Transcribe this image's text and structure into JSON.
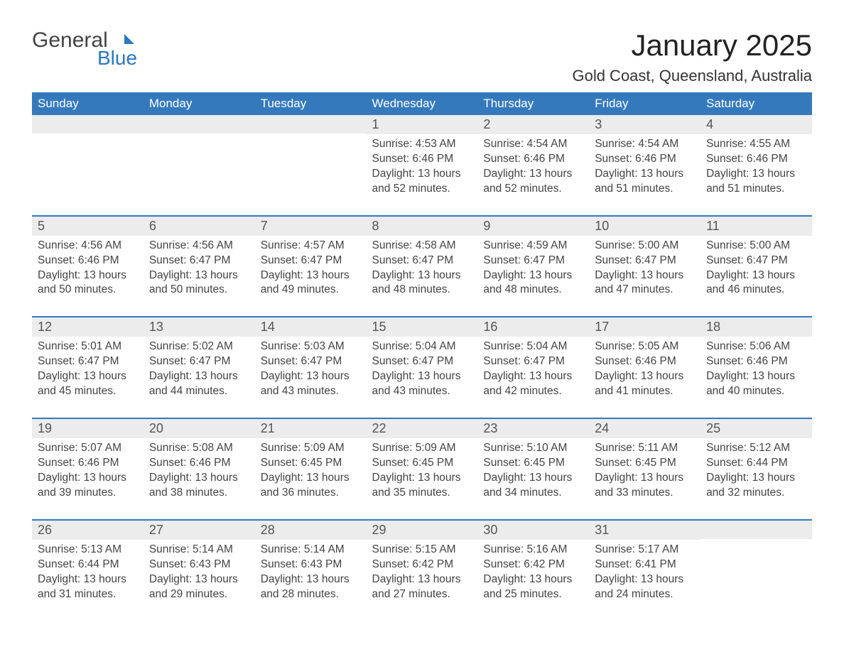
{
  "logo": {
    "text1": "General",
    "text2": "Blue",
    "flag_color": "#2778c4"
  },
  "title": "January 2025",
  "location": "Gold Coast, Queensland, Australia",
  "colors": {
    "header_bg": "#3579bd",
    "header_text": "#ffffff",
    "daynum_bg": "#ececec",
    "border": "#3579bd",
    "text": "#444444"
  },
  "day_headers": [
    "Sunday",
    "Monday",
    "Tuesday",
    "Wednesday",
    "Thursday",
    "Friday",
    "Saturday"
  ],
  "weeks": [
    [
      {
        "day": "",
        "sunrise": "",
        "sunset": "",
        "daylight": ""
      },
      {
        "day": "",
        "sunrise": "",
        "sunset": "",
        "daylight": ""
      },
      {
        "day": "",
        "sunrise": "",
        "sunset": "",
        "daylight": ""
      },
      {
        "day": "1",
        "sunrise": "Sunrise: 4:53 AM",
        "sunset": "Sunset: 6:46 PM",
        "daylight": "Daylight: 13 hours and 52 minutes."
      },
      {
        "day": "2",
        "sunrise": "Sunrise: 4:54 AM",
        "sunset": "Sunset: 6:46 PM",
        "daylight": "Daylight: 13 hours and 52 minutes."
      },
      {
        "day": "3",
        "sunrise": "Sunrise: 4:54 AM",
        "sunset": "Sunset: 6:46 PM",
        "daylight": "Daylight: 13 hours and 51 minutes."
      },
      {
        "day": "4",
        "sunrise": "Sunrise: 4:55 AM",
        "sunset": "Sunset: 6:46 PM",
        "daylight": "Daylight: 13 hours and 51 minutes."
      }
    ],
    [
      {
        "day": "5",
        "sunrise": "Sunrise: 4:56 AM",
        "sunset": "Sunset: 6:46 PM",
        "daylight": "Daylight: 13 hours and 50 minutes."
      },
      {
        "day": "6",
        "sunrise": "Sunrise: 4:56 AM",
        "sunset": "Sunset: 6:47 PM",
        "daylight": "Daylight: 13 hours and 50 minutes."
      },
      {
        "day": "7",
        "sunrise": "Sunrise: 4:57 AM",
        "sunset": "Sunset: 6:47 PM",
        "daylight": "Daylight: 13 hours and 49 minutes."
      },
      {
        "day": "8",
        "sunrise": "Sunrise: 4:58 AM",
        "sunset": "Sunset: 6:47 PM",
        "daylight": "Daylight: 13 hours and 48 minutes."
      },
      {
        "day": "9",
        "sunrise": "Sunrise: 4:59 AM",
        "sunset": "Sunset: 6:47 PM",
        "daylight": "Daylight: 13 hours and 48 minutes."
      },
      {
        "day": "10",
        "sunrise": "Sunrise: 5:00 AM",
        "sunset": "Sunset: 6:47 PM",
        "daylight": "Daylight: 13 hours and 47 minutes."
      },
      {
        "day": "11",
        "sunrise": "Sunrise: 5:00 AM",
        "sunset": "Sunset: 6:47 PM",
        "daylight": "Daylight: 13 hours and 46 minutes."
      }
    ],
    [
      {
        "day": "12",
        "sunrise": "Sunrise: 5:01 AM",
        "sunset": "Sunset: 6:47 PM",
        "daylight": "Daylight: 13 hours and 45 minutes."
      },
      {
        "day": "13",
        "sunrise": "Sunrise: 5:02 AM",
        "sunset": "Sunset: 6:47 PM",
        "daylight": "Daylight: 13 hours and 44 minutes."
      },
      {
        "day": "14",
        "sunrise": "Sunrise: 5:03 AM",
        "sunset": "Sunset: 6:47 PM",
        "daylight": "Daylight: 13 hours and 43 minutes."
      },
      {
        "day": "15",
        "sunrise": "Sunrise: 5:04 AM",
        "sunset": "Sunset: 6:47 PM",
        "daylight": "Daylight: 13 hours and 43 minutes."
      },
      {
        "day": "16",
        "sunrise": "Sunrise: 5:04 AM",
        "sunset": "Sunset: 6:47 PM",
        "daylight": "Daylight: 13 hours and 42 minutes."
      },
      {
        "day": "17",
        "sunrise": "Sunrise: 5:05 AM",
        "sunset": "Sunset: 6:46 PM",
        "daylight": "Daylight: 13 hours and 41 minutes."
      },
      {
        "day": "18",
        "sunrise": "Sunrise: 5:06 AM",
        "sunset": "Sunset: 6:46 PM",
        "daylight": "Daylight: 13 hours and 40 minutes."
      }
    ],
    [
      {
        "day": "19",
        "sunrise": "Sunrise: 5:07 AM",
        "sunset": "Sunset: 6:46 PM",
        "daylight": "Daylight: 13 hours and 39 minutes."
      },
      {
        "day": "20",
        "sunrise": "Sunrise: 5:08 AM",
        "sunset": "Sunset: 6:46 PM",
        "daylight": "Daylight: 13 hours and 38 minutes."
      },
      {
        "day": "21",
        "sunrise": "Sunrise: 5:09 AM",
        "sunset": "Sunset: 6:45 PM",
        "daylight": "Daylight: 13 hours and 36 minutes."
      },
      {
        "day": "22",
        "sunrise": "Sunrise: 5:09 AM",
        "sunset": "Sunset: 6:45 PM",
        "daylight": "Daylight: 13 hours and 35 minutes."
      },
      {
        "day": "23",
        "sunrise": "Sunrise: 5:10 AM",
        "sunset": "Sunset: 6:45 PM",
        "daylight": "Daylight: 13 hours and 34 minutes."
      },
      {
        "day": "24",
        "sunrise": "Sunrise: 5:11 AM",
        "sunset": "Sunset: 6:45 PM",
        "daylight": "Daylight: 13 hours and 33 minutes."
      },
      {
        "day": "25",
        "sunrise": "Sunrise: 5:12 AM",
        "sunset": "Sunset: 6:44 PM",
        "daylight": "Daylight: 13 hours and 32 minutes."
      }
    ],
    [
      {
        "day": "26",
        "sunrise": "Sunrise: 5:13 AM",
        "sunset": "Sunset: 6:44 PM",
        "daylight": "Daylight: 13 hours and 31 minutes."
      },
      {
        "day": "27",
        "sunrise": "Sunrise: 5:14 AM",
        "sunset": "Sunset: 6:43 PM",
        "daylight": "Daylight: 13 hours and 29 minutes."
      },
      {
        "day": "28",
        "sunrise": "Sunrise: 5:14 AM",
        "sunset": "Sunset: 6:43 PM",
        "daylight": "Daylight: 13 hours and 28 minutes."
      },
      {
        "day": "29",
        "sunrise": "Sunrise: 5:15 AM",
        "sunset": "Sunset: 6:42 PM",
        "daylight": "Daylight: 13 hours and 27 minutes."
      },
      {
        "day": "30",
        "sunrise": "Sunrise: 5:16 AM",
        "sunset": "Sunset: 6:42 PM",
        "daylight": "Daylight: 13 hours and 25 minutes."
      },
      {
        "day": "31",
        "sunrise": "Sunrise: 5:17 AM",
        "sunset": "Sunset: 6:41 PM",
        "daylight": "Daylight: 13 hours and 24 minutes."
      },
      {
        "day": "",
        "sunrise": "",
        "sunset": "",
        "daylight": ""
      }
    ]
  ]
}
